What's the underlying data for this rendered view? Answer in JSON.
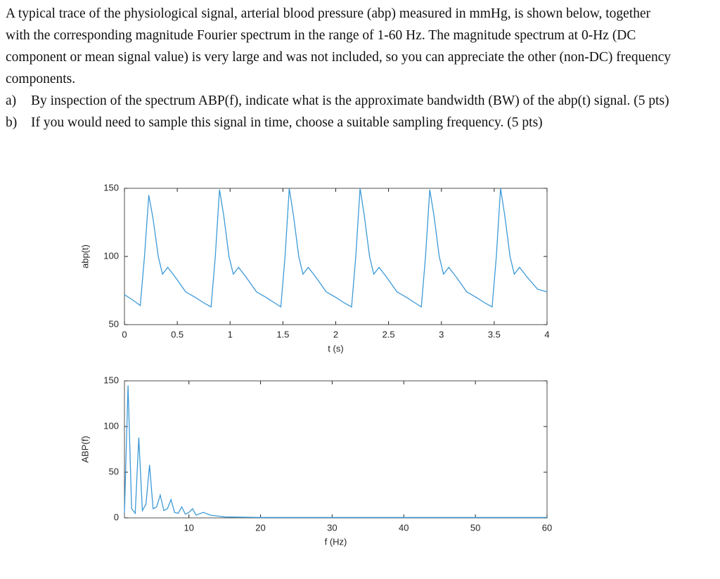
{
  "document": {
    "intro": "A typical trace of the physiological signal, arterial blood pressure (abp) measured in mmHg, is shown below, together with the corresponding magnitude Fourier spectrum in the range of 1-60 Hz. The magnitude spectrum at 0-Hz (DC component or mean signal value) is very large and was not included, so you can appreciate the other (non-DC) frequency components.",
    "questions": [
      {
        "label": "a)",
        "text": "By inspection of the spectrum ABP(f), indicate what is the approximate bandwidth (BW) of the abp(t) signal. (5 pts)"
      },
      {
        "label": "b)",
        "text": "If you would need to sample this signal in time, choose a suitable sampling frequency. (5 pts)"
      }
    ]
  },
  "chart_data": [
    {
      "type": "line",
      "x_label": "t (s)",
      "y_label": "abp(t)",
      "color": "#3d9ad8",
      "grid": false,
      "xlim": [
        0,
        4
      ],
      "ylim": [
        50,
        150
      ],
      "xticks": [
        0,
        0.5,
        1,
        1.5,
        2,
        2.5,
        3,
        3.5,
        4
      ],
      "yticks": [
        50,
        100,
        150
      ],
      "x": [
        0,
        0.08,
        0.15,
        0.19,
        0.23,
        0.27,
        0.32,
        0.36,
        0.41,
        0.48,
        0.58,
        0.67,
        0.75,
        0.82,
        0.86,
        0.9,
        0.94,
        0.99,
        1.03,
        1.08,
        1.15,
        1.25,
        1.34,
        1.42,
        1.48,
        1.52,
        1.56,
        1.6,
        1.65,
        1.69,
        1.74,
        1.81,
        1.91,
        2.0,
        2.08,
        2.15,
        2.19,
        2.23,
        2.27,
        2.32,
        2.36,
        2.41,
        2.48,
        2.58,
        2.67,
        2.75,
        2.81,
        2.85,
        2.89,
        2.93,
        2.98,
        3.02,
        3.07,
        3.14,
        3.24,
        3.33,
        3.41,
        3.48,
        3.52,
        3.56,
        3.6,
        3.65,
        3.69,
        3.74,
        3.81,
        3.91,
        4.0
      ],
      "values": [
        72,
        68,
        64,
        100,
        145,
        128,
        100,
        87,
        92,
        85,
        74,
        70,
        66,
        63,
        100,
        149,
        130,
        100,
        87,
        92,
        85,
        74,
        70,
        66,
        63,
        100,
        150,
        130,
        100,
        87,
        92,
        85,
        74,
        70,
        66,
        63,
        100,
        150,
        130,
        100,
        87,
        92,
        85,
        74,
        70,
        66,
        63,
        100,
        149,
        130,
        100,
        87,
        92,
        85,
        74,
        70,
        66,
        63,
        100,
        150,
        130,
        100,
        87,
        92,
        85,
        76,
        74
      ]
    },
    {
      "type": "line",
      "x_label": "f (Hz)",
      "y_label": "ABP(f)",
      "color": "#3d9ad8",
      "grid": false,
      "xlim": [
        1,
        60
      ],
      "ylim": [
        0,
        150
      ],
      "xticks": [
        10,
        20,
        30,
        40,
        50,
        60
      ],
      "yticks": [
        0,
        50,
        100,
        150
      ],
      "x": [
        1,
        1.5,
        2,
        2.5,
        3,
        3.5,
        4,
        4.5,
        5,
        5.5,
        6,
        6.5,
        7,
        7.5,
        8,
        8.5,
        9,
        9.5,
        10,
        10.5,
        11,
        12,
        13,
        14,
        15,
        20,
        30,
        40,
        50,
        60
      ],
      "values": [
        5,
        145,
        10,
        5,
        88,
        8,
        15,
        58,
        10,
        12,
        25,
        8,
        10,
        20,
        6,
        5,
        12,
        4,
        6,
        10,
        3,
        6,
        3,
        2,
        1,
        0.5,
        0.5,
        0.5,
        0.5,
        0.5
      ]
    }
  ]
}
